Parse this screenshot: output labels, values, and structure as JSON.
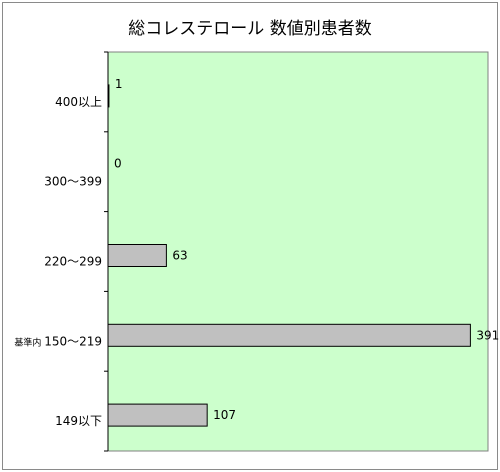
{
  "chart_data": {
    "type": "bar",
    "orientation": "horizontal",
    "title": "総コレステロール 数値別患者数",
    "categories": [
      "400以上",
      "300～399",
      "220～299",
      "基準内 150～219",
      "149以下"
    ],
    "category_prefix": [
      "",
      "",
      "",
      "基準内",
      ""
    ],
    "category_label_main": [
      "400以上",
      "300～399",
      "220～299",
      "150～219",
      "149以下"
    ],
    "values": [
      1,
      0,
      63,
      391,
      107
    ],
    "xlim": [
      0,
      410
    ],
    "xlabel": "",
    "ylabel": "",
    "grid": false,
    "legend": "none",
    "plot_background": "#ccffcc",
    "bar_color": "#c0c0c0",
    "bar_edge_color": "#000000"
  }
}
